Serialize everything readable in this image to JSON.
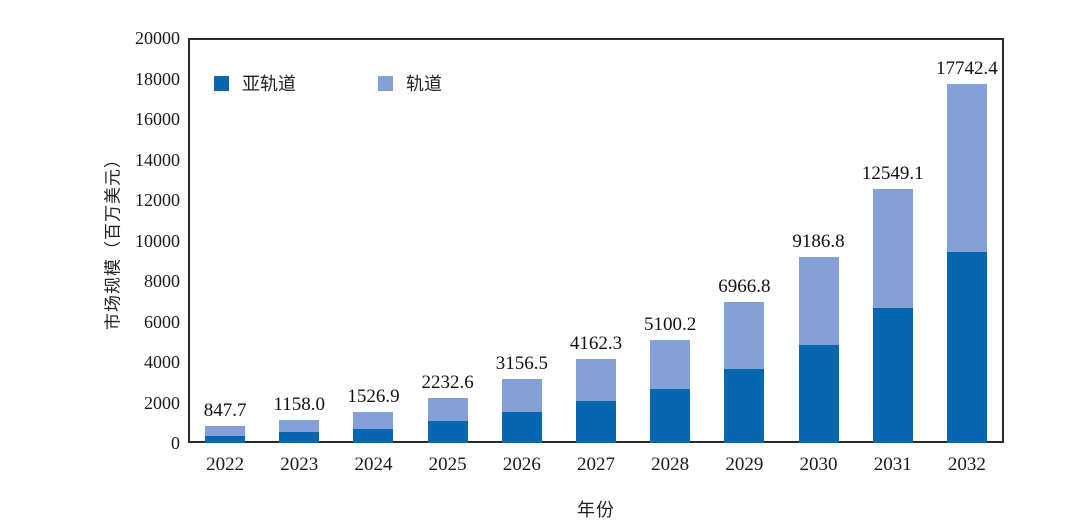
{
  "chart_data": {
    "type": "bar",
    "subtype": "stacked-vertical",
    "title": "",
    "xlabel": "年份",
    "ylabel": "市场规模（百万美元）",
    "categories": [
      "2022",
      "2023",
      "2024",
      "2025",
      "2026",
      "2027",
      "2028",
      "2029",
      "2030",
      "2031",
      "2032"
    ],
    "series": [
      {
        "name": "亚轨道",
        "color": "#0666b0",
        "values": [
          370.0,
          530.0,
          710.0,
          1070.0,
          1550.0,
          2080.0,
          2680.0,
          3650.0,
          4840.0,
          6650.0,
          9410.0
        ]
      },
      {
        "name": "轨道",
        "color": "#84a0d5",
        "values": [
          477.7,
          628.0,
          816.9,
          1162.6,
          1606.5,
          2082.3,
          2420.2,
          3316.8,
          4346.8,
          5899.1,
          8332.4
        ]
      }
    ],
    "totals": [
      847.7,
      1158.0,
      1526.9,
      2232.6,
      3156.5,
      4162.3,
      5100.2,
      6966.8,
      9186.8,
      12549.1,
      17742.4
    ],
    "total_labels": [
      "847.7",
      "1158.0",
      "1526.9",
      "2232.6",
      "3156.5",
      "4162.3",
      "5100.2",
      "6966.8",
      "9186.8",
      "12549.1",
      "17742.4"
    ],
    "ylim": [
      0,
      20000
    ],
    "yticks": [
      0,
      2000,
      4000,
      6000,
      8000,
      10000,
      12000,
      14000,
      16000,
      18000,
      20000
    ],
    "grid": false,
    "tick_marks": false,
    "legend_position": "inside-top-left",
    "frame_color": "#2b2b2b",
    "background_color": "#ffffff",
    "label_color": "#111111"
  }
}
